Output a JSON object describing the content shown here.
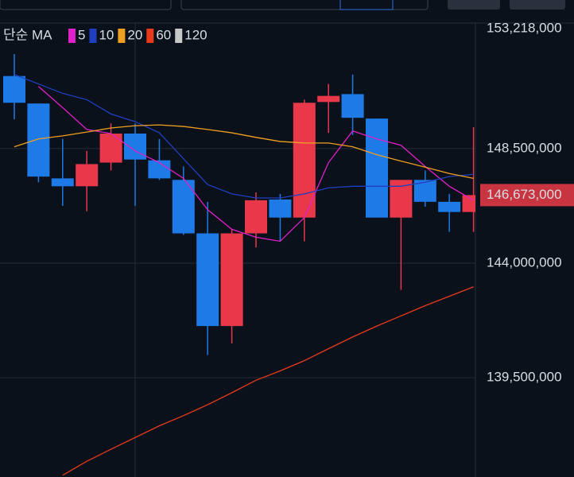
{
  "chart_data": {
    "type": "candlestick",
    "legend_title": "단순 MA",
    "up_color": "#e8384a",
    "down_color": "#1e7ae6",
    "open": [
      151350000,
      150270000,
      147330000,
      147020000,
      147950000,
      149090000,
      148040000,
      147270000,
      145170000,
      141530000,
      145170000,
      146500000,
      145790000,
      150330000,
      150640000,
      149680000,
      145790000,
      147270000,
      146410000,
      146010000
    ],
    "high": [
      152210000,
      150270000,
      148880000,
      148410000,
      149490000,
      149490000,
      148880000,
      147800000,
      146410000,
      145330000,
      146780000,
      146720000,
      150420000,
      151040000,
      151410000,
      149680000,
      147270000,
      147640000,
      146720000,
      149340000
    ],
    "low": [
      149650000,
      147180000,
      146250000,
      146040000,
      147640000,
      146250000,
      147270000,
      145110000,
      140390000,
      140850000,
      144620000,
      144860000,
      144860000,
      149120000,
      149030000,
      145790000,
      142950000,
      146220000,
      145230000,
      145230000
    ],
    "close": [
      150300000,
      147400000,
      147020000,
      147890000,
      149090000,
      148070000,
      147330000,
      145170000,
      141530000,
      145170000,
      146470000,
      145790000,
      150300000,
      150570000,
      149710000,
      145790000,
      147270000,
      146410000,
      146010000,
      146673000
    ],
    "series": [
      {
        "name": "5",
        "color": "#e020c8",
        "values": [
          null,
          150940000,
          150110000,
          149250000,
          149090000,
          148410000,
          147950000,
          147330000,
          146100000,
          145330000,
          145020000,
          144860000,
          145790000,
          147950000,
          149190000,
          148880000,
          148630000,
          147800000,
          147020000,
          146470000
        ]
      },
      {
        "name": "10",
        "color": "#1f3fc0",
        "values": [
          151410000,
          151040000,
          150670000,
          150420000,
          149860000,
          149560000,
          149120000,
          148100000,
          147090000,
          146720000,
          146560000,
          146560000,
          146720000,
          146960000,
          147020000,
          147020000,
          147020000,
          147180000,
          147400000,
          147490000
        ]
      },
      {
        "name": "20",
        "color": "#f0a020",
        "values": [
          148570000,
          148880000,
          149000000,
          149150000,
          149310000,
          149400000,
          149430000,
          149370000,
          149250000,
          149120000,
          148940000,
          148780000,
          148720000,
          148720000,
          148570000,
          148260000,
          148010000,
          147770000,
          147520000,
          147330000
        ]
      },
      {
        "name": "60",
        "color": "#e83a1a",
        "values": [
          null,
          null,
          135670000,
          136220000,
          136690000,
          137150000,
          137610000,
          138010000,
          138440000,
          138910000,
          139400000,
          139770000,
          140170000,
          140640000,
          141100000,
          141530000,
          141930000,
          142330000,
          142700000,
          143070000
        ]
      },
      {
        "name": "120",
        "color": "#c8c8c8",
        "values": [
          null,
          null,
          null,
          null,
          null,
          null,
          null,
          null,
          null,
          null,
          null,
          null,
          null,
          null,
          null,
          null,
          null,
          null,
          null,
          null
        ]
      }
    ],
    "ylim": [
      135600000,
      153400000
    ],
    "yticks": [
      {
        "value": 153218000,
        "label": "153,218,000"
      },
      {
        "value": 148500000,
        "label": "148,500,000"
      },
      {
        "value": 144000000,
        "label": "144,000,000"
      },
      {
        "value": 139500000,
        "label": "139,500,000"
      }
    ],
    "last_price": {
      "value": 146673000,
      "label": "146,673,000"
    },
    "grid": true
  }
}
